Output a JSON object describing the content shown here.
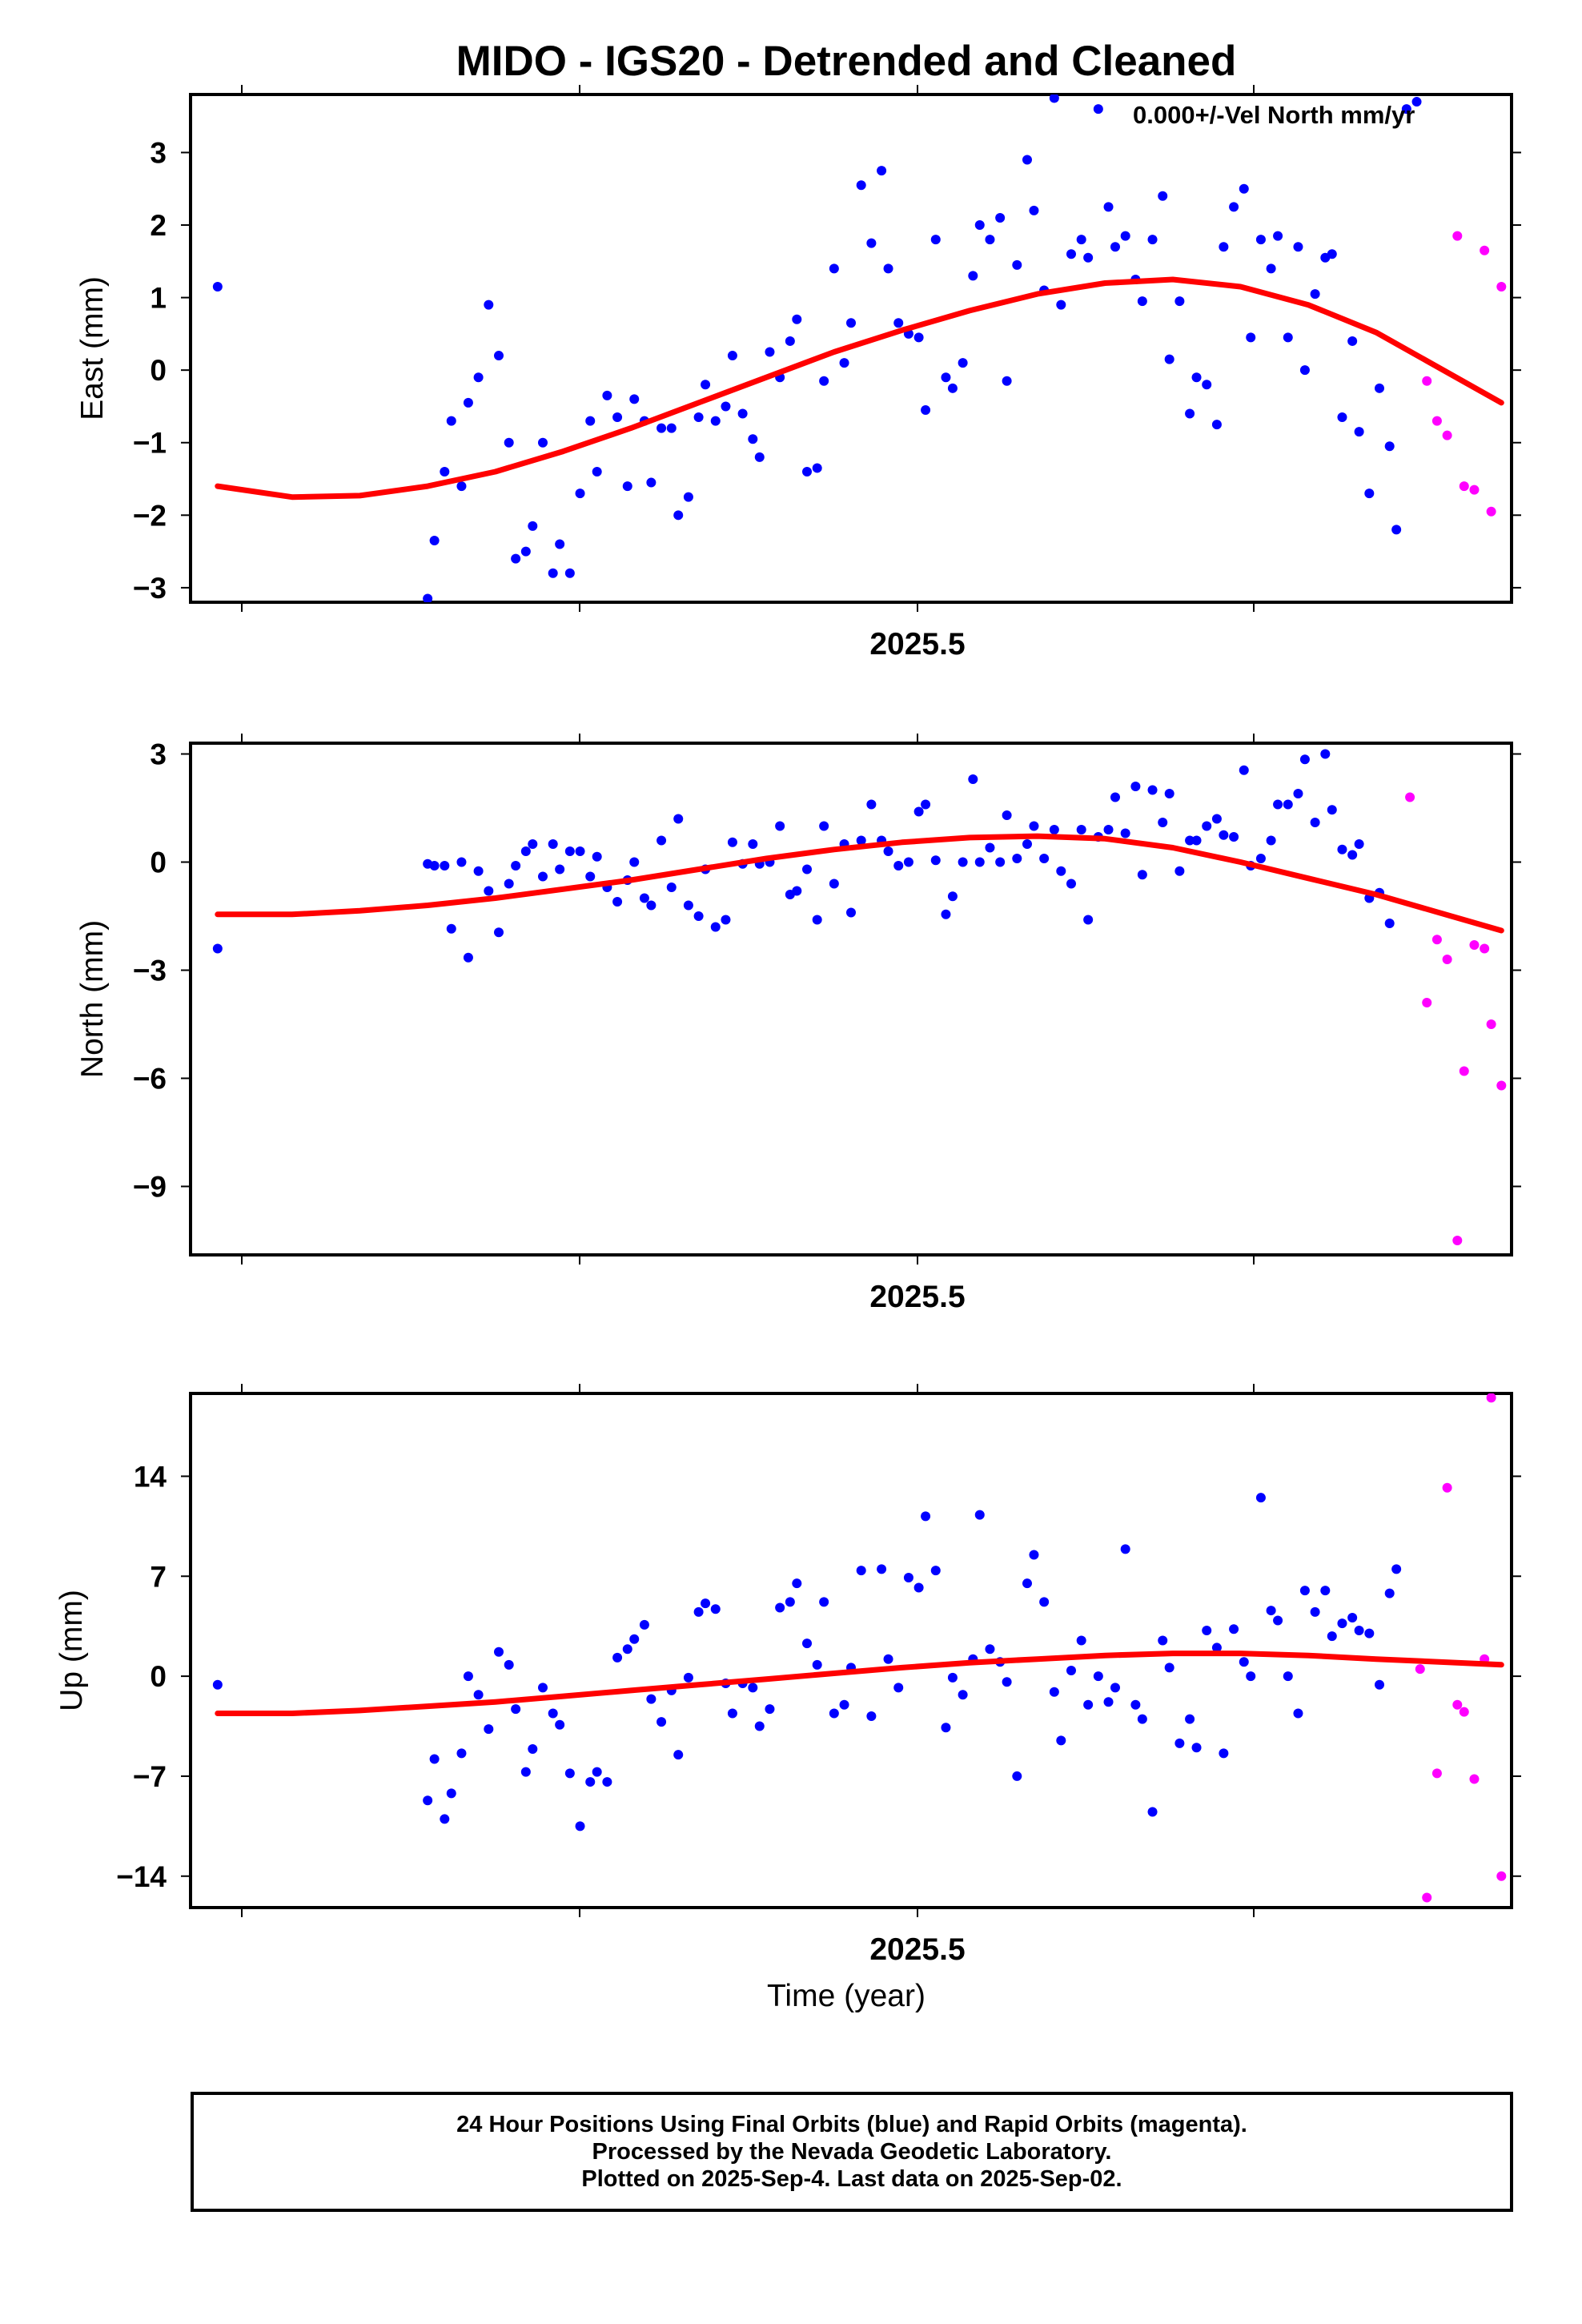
{
  "title": "MIDO - IGS20 - Detrended and Cleaned",
  "colors": {
    "final": "#0000ff",
    "rapid": "#ff00ff",
    "fit": "#ff0000",
    "frame": "#000000"
  },
  "chart_data": [
    {
      "type": "scatter",
      "ylabel": "East (mm)",
      "xtick_label": "2025.5",
      "legend": "0.000+/-Vel North mm/yr",
      "xlim": [
        2025.28,
        2025.67
      ],
      "ylim": [
        -3.2,
        3.8
      ],
      "yticks": [
        -3,
        -2,
        -1,
        0,
        1,
        2,
        3
      ],
      "ytick_labels": [
        "−3",
        "−2",
        "−1",
        "0",
        "1",
        "2",
        "3"
      ],
      "series": [
        {
          "name": "Final Orbits",
          "color": "#0000ff",
          "x": [
            2025.288,
            2025.35,
            2025.352,
            2025.355,
            2025.357,
            2025.36,
            2025.362,
            2025.365,
            2025.368,
            2025.371,
            2025.374,
            2025.376,
            2025.379,
            2025.381,
            2025.384,
            2025.387,
            2025.389,
            2025.392,
            2025.395,
            2025.398,
            2025.4,
            2025.403,
            2025.406,
            2025.409,
            2025.411,
            2025.414,
            2025.416,
            2025.419,
            2025.422,
            2025.424,
            2025.427,
            2025.43,
            2025.432,
            2025.435,
            2025.438,
            2025.44,
            2025.443,
            2025.446,
            2025.448,
            2025.451,
            2025.454,
            2025.457,
            2025.459,
            2025.462,
            2025.465,
            2025.467,
            2025.47,
            2025.473,
            2025.475,
            2025.478,
            2025.481,
            2025.484,
            2025.486,
            2025.489,
            2025.492,
            2025.495,
            2025.497,
            2025.5,
            2025.503,
            2025.505,
            2025.508,
            2025.511,
            2025.513,
            2025.516,
            2025.519,
            2025.521,
            2025.524,
            2025.527,
            2025.529,
            2025.532,
            2025.535,
            2025.537,
            2025.54,
            2025.543,
            2025.545,
            2025.548,
            2025.551,
            2025.553,
            2025.556,
            2025.559,
            2025.561,
            2025.564,
            2025.567,
            2025.569,
            2025.572,
            2025.575,
            2025.577,
            2025.58,
            2025.583,
            2025.585,
            2025.588,
            2025.591,
            2025.593,
            2025.596,
            2025.599,
            2025.601,
            2025.604,
            2025.607,
            2025.609,
            2025.612,
            2025.615,
            2025.617,
            2025.62,
            2025.623,
            2025.625,
            2025.628,
            2025.631,
            2025.634,
            2025.636,
            2025.639,
            2025.642
          ],
          "y": [
            1.15,
            -3.15,
            -2.35,
            -1.4,
            -0.7,
            -1.6,
            -0.45,
            -0.1,
            0.9,
            0.2,
            -1.0,
            -2.6,
            -2.5,
            -2.15,
            -1.0,
            -2.8,
            -2.4,
            -2.8,
            -1.7,
            -0.7,
            -1.4,
            -0.35,
            -0.65,
            -1.6,
            -0.4,
            -0.7,
            -1.55,
            -0.8,
            -0.8,
            -2.0,
            -1.75,
            -0.65,
            -0.2,
            -0.7,
            -0.5,
            0.2,
            -0.6,
            -0.95,
            -1.2,
            0.25,
            -0.1,
            0.4,
            0.7,
            -1.4,
            -1.35,
            -0.15,
            1.4,
            0.1,
            0.65,
            2.55,
            1.75,
            2.75,
            1.4,
            0.65,
            0.5,
            0.45,
            -0.55,
            1.8,
            -0.1,
            -0.25,
            0.1,
            1.3,
            2.0,
            1.8,
            2.1,
            -0.15,
            1.45,
            2.9,
            2.2,
            1.1,
            3.75,
            0.9,
            1.6,
            1.8,
            1.55,
            3.6,
            2.25,
            1.7,
            1.85,
            1.25,
            0.95,
            1.8,
            2.4,
            0.15,
            0.95,
            -0.6,
            -0.1,
            -0.2,
            -0.75,
            1.7,
            2.25,
            2.5,
            0.45,
            1.8,
            1.4,
            1.85,
            0.45,
            1.7,
            0.0,
            1.05,
            1.55,
            1.6,
            -0.65,
            0.4,
            -0.85,
            -1.7,
            -0.25,
            -1.05,
            -2.2,
            3.6,
            3.7
          ]
        },
        {
          "name": "Rapid Orbits",
          "color": "#ff00ff",
          "x": [
            2025.645,
            2025.648,
            2025.651,
            2025.654,
            2025.656,
            2025.659,
            2025.662,
            2025.664,
            2025.667
          ],
          "y": [
            -0.15,
            -0.7,
            -0.9,
            1.85,
            -1.6,
            -1.65,
            1.65,
            -1.95,
            1.15
          ]
        }
      ],
      "fit": {
        "x": [
          2025.288,
          2025.31,
          2025.33,
          2025.35,
          2025.37,
          2025.39,
          2025.41,
          2025.43,
          2025.45,
          2025.47,
          2025.49,
          2025.51,
          2025.53,
          2025.55,
          2025.57,
          2025.59,
          2025.61,
          2025.63,
          2025.667
        ],
        "y": [
          -1.6,
          -1.75,
          -1.73,
          -1.6,
          -1.4,
          -1.12,
          -0.8,
          -0.45,
          -0.1,
          0.25,
          0.55,
          0.82,
          1.05,
          1.2,
          1.25,
          1.15,
          0.9,
          0.52,
          -0.45
        ]
      }
    },
    {
      "type": "scatter",
      "ylabel": "North (mm)",
      "xtick_label": "2025.5",
      "xlim": [
        2025.28,
        2025.67
      ],
      "ylim": [
        -10.9,
        3.3
      ],
      "yticks": [
        -9,
        -6,
        -3,
        0,
        3
      ],
      "ytick_labels": [
        "−9",
        "−6",
        "−3",
        "0",
        "3"
      ],
      "series": [
        {
          "name": "Final Orbits",
          "color": "#0000ff",
          "x": [
            2025.288,
            2025.35,
            2025.352,
            2025.355,
            2025.357,
            2025.36,
            2025.362,
            2025.365,
            2025.368,
            2025.371,
            2025.374,
            2025.376,
            2025.379,
            2025.381,
            2025.384,
            2025.387,
            2025.389,
            2025.392,
            2025.395,
            2025.398,
            2025.4,
            2025.403,
            2025.406,
            2025.409,
            2025.411,
            2025.414,
            2025.416,
            2025.419,
            2025.422,
            2025.424,
            2025.427,
            2025.43,
            2025.432,
            2025.435,
            2025.438,
            2025.44,
            2025.443,
            2025.446,
            2025.448,
            2025.451,
            2025.454,
            2025.457,
            2025.459,
            2025.462,
            2025.465,
            2025.467,
            2025.47,
            2025.473,
            2025.475,
            2025.478,
            2025.481,
            2025.484,
            2025.486,
            2025.489,
            2025.492,
            2025.495,
            2025.497,
            2025.5,
            2025.503,
            2025.505,
            2025.508,
            2025.511,
            2025.513,
            2025.516,
            2025.519,
            2025.521,
            2025.524,
            2025.527,
            2025.529,
            2025.532,
            2025.535,
            2025.537,
            2025.54,
            2025.543,
            2025.545,
            2025.548,
            2025.551,
            2025.553,
            2025.556,
            2025.559,
            2025.561,
            2025.564,
            2025.567,
            2025.569,
            2025.572,
            2025.575,
            2025.577,
            2025.58,
            2025.583,
            2025.585,
            2025.588,
            2025.591,
            2025.593,
            2025.596,
            2025.599,
            2025.601,
            2025.604,
            2025.607,
            2025.609,
            2025.612,
            2025.615,
            2025.617,
            2025.62,
            2025.623,
            2025.625,
            2025.628,
            2025.631,
            2025.634
          ],
          "y": [
            -2.4,
            -0.05,
            -0.1,
            -0.1,
            -1.85,
            0.0,
            -2.65,
            -0.25,
            -0.8,
            -1.95,
            -0.6,
            -0.1,
            0.3,
            0.5,
            -0.4,
            0.5,
            -0.2,
            0.3,
            0.3,
            -0.4,
            0.15,
            -0.7,
            -1.1,
            -0.5,
            0.0,
            -1.0,
            -1.2,
            0.6,
            -0.7,
            1.2,
            -1.2,
            -1.5,
            -0.2,
            -1.8,
            -1.6,
            0.55,
            -0.05,
            0.5,
            -0.05,
            0.0,
            1.0,
            -0.9,
            -0.8,
            -0.2,
            -1.6,
            1.0,
            -0.6,
            0.5,
            -1.4,
            0.6,
            1.6,
            0.6,
            0.3,
            -0.1,
            0.0,
            1.4,
            1.6,
            0.05,
            -1.45,
            -0.95,
            0.0,
            2.3,
            0.0,
            0.4,
            0.0,
            1.3,
            0.1,
            0.5,
            1.0,
            0.1,
            0.9,
            -0.25,
            -0.6,
            0.9,
            -1.6,
            0.7,
            0.9,
            1.8,
            0.8,
            2.1,
            -0.35,
            2.0,
            1.1,
            1.9,
            -0.25,
            0.6,
            0.6,
            1.0,
            1.2,
            0.75,
            0.7,
            2.55,
            -0.1,
            0.1,
            0.6,
            1.6,
            1.6,
            1.9,
            2.85,
            1.1,
            3.0,
            1.45,
            0.35,
            0.2,
            0.5,
            -1.0,
            -0.85,
            -1.7
          ]
        },
        {
          "name": "Rapid Orbits",
          "color": "#ff00ff",
          "x": [
            2025.64,
            2025.645,
            2025.648,
            2025.651,
            2025.654,
            2025.656,
            2025.659,
            2025.662,
            2025.664,
            2025.667
          ],
          "y": [
            1.8,
            -3.9,
            -2.15,
            -2.7,
            -10.5,
            -5.8,
            -2.3,
            -2.4,
            -4.5,
            -6.2
          ]
        }
      ],
      "fit": {
        "x": [
          2025.288,
          2025.31,
          2025.33,
          2025.35,
          2025.37,
          2025.39,
          2025.41,
          2025.43,
          2025.45,
          2025.47,
          2025.49,
          2025.51,
          2025.53,
          2025.55,
          2025.57,
          2025.59,
          2025.61,
          2025.63,
          2025.667
        ],
        "y": [
          -1.45,
          -1.45,
          -1.35,
          -1.2,
          -1.0,
          -0.75,
          -0.5,
          -0.2,
          0.1,
          0.35,
          0.55,
          0.68,
          0.72,
          0.65,
          0.4,
          0.0,
          -0.45,
          -0.9,
          -1.9
        ]
      }
    },
    {
      "type": "scatter",
      "ylabel": "Up (mm)",
      "xtick_label": "2025.5",
      "xlabel": "Time (year)",
      "xlim": [
        2025.28,
        2025.67
      ],
      "ylim": [
        -16.2,
        19.8
      ],
      "yticks": [
        -14,
        -7,
        0,
        7,
        14
      ],
      "ytick_labels": [
        "−14",
        "−7",
        "0",
        "7",
        "14"
      ],
      "series": [
        {
          "name": "Final Orbits",
          "color": "#0000ff",
          "x": [
            2025.288,
            2025.35,
            2025.352,
            2025.355,
            2025.357,
            2025.36,
            2025.362,
            2025.365,
            2025.368,
            2025.371,
            2025.374,
            2025.376,
            2025.379,
            2025.381,
            2025.384,
            2025.387,
            2025.389,
            2025.392,
            2025.395,
            2025.398,
            2025.4,
            2025.403,
            2025.406,
            2025.409,
            2025.411,
            2025.414,
            2025.416,
            2025.419,
            2025.422,
            2025.424,
            2025.427,
            2025.43,
            2025.432,
            2025.435,
            2025.438,
            2025.44,
            2025.443,
            2025.446,
            2025.448,
            2025.451,
            2025.454,
            2025.457,
            2025.459,
            2025.462,
            2025.465,
            2025.467,
            2025.47,
            2025.473,
            2025.475,
            2025.478,
            2025.481,
            2025.484,
            2025.486,
            2025.489,
            2025.492,
            2025.495,
            2025.497,
            2025.5,
            2025.503,
            2025.505,
            2025.508,
            2025.511,
            2025.513,
            2025.516,
            2025.519,
            2025.521,
            2025.524,
            2025.527,
            2025.529,
            2025.532,
            2025.535,
            2025.537,
            2025.54,
            2025.543,
            2025.545,
            2025.548,
            2025.551,
            2025.553,
            2025.556,
            2025.559,
            2025.561,
            2025.564,
            2025.567,
            2025.569,
            2025.572,
            2025.575,
            2025.577,
            2025.58,
            2025.583,
            2025.585,
            2025.588,
            2025.591,
            2025.593,
            2025.596,
            2025.599,
            2025.601,
            2025.604,
            2025.607,
            2025.609,
            2025.612,
            2025.615,
            2025.617,
            2025.62,
            2025.623,
            2025.625,
            2025.628,
            2025.631,
            2025.634,
            2025.636
          ],
          "y": [
            -0.6,
            -8.7,
            -5.8,
            -10.0,
            -8.2,
            -5.4,
            0.0,
            -1.3,
            -3.7,
            1.7,
            0.8,
            -2.3,
            -6.7,
            -5.1,
            -0.8,
            -2.6,
            -3.4,
            -6.8,
            -10.5,
            -7.4,
            -6.7,
            -7.4,
            1.3,
            1.9,
            2.6,
            3.6,
            -1.6,
            -3.2,
            -1.0,
            -5.5,
            -0.1,
            4.5,
            5.1,
            4.7,
            -0.5,
            -2.6,
            -0.5,
            -0.8,
            -3.5,
            -2.3,
            4.8,
            5.2,
            6.5,
            2.3,
            0.8,
            5.2,
            -2.6,
            -2.0,
            0.6,
            7.4,
            -2.8,
            7.5,
            1.2,
            -0.8,
            6.9,
            6.2,
            11.2,
            7.4,
            -3.6,
            -0.1,
            -1.3,
            1.2,
            11.3,
            1.9,
            1.0,
            -0.4,
            -7.0,
            6.5,
            8.5,
            5.2,
            -1.1,
            -4.5,
            0.4,
            2.5,
            -2.0,
            0.0,
            -1.8,
            -0.8,
            8.9,
            -2.0,
            -3.0,
            -9.5,
            2.5,
            0.6,
            -4.7,
            -3.0,
            -5.0,
            3.2,
            2.0,
            -5.4,
            3.3,
            1.0,
            0.0,
            12.5,
            4.6,
            3.9,
            0.0,
            -2.6,
            6.0,
            4.5,
            6.0,
            2.8,
            3.7,
            4.1,
            3.2,
            3.0,
            -0.6,
            5.8,
            7.5
          ]
        },
        {
          "name": "Rapid Orbits",
          "color": "#ff00ff",
          "x": [
            2025.643,
            2025.645,
            2025.648,
            2025.651,
            2025.654,
            2025.656,
            2025.659,
            2025.662,
            2025.664,
            2025.667
          ],
          "y": [
            0.5,
            -15.5,
            -6.8,
            13.2,
            -2.0,
            -2.5,
            -7.2,
            1.2,
            19.5,
            -14.0
          ]
        }
      ],
      "fit": {
        "x": [
          2025.288,
          2025.31,
          2025.33,
          2025.35,
          2025.37,
          2025.39,
          2025.41,
          2025.43,
          2025.45,
          2025.47,
          2025.49,
          2025.51,
          2025.53,
          2025.55,
          2025.57,
          2025.59,
          2025.61,
          2025.63,
          2025.667
        ],
        "y": [
          -2.6,
          -2.6,
          -2.4,
          -2.1,
          -1.8,
          -1.4,
          -1.0,
          -0.6,
          -0.2,
          0.2,
          0.6,
          0.95,
          1.2,
          1.45,
          1.6,
          1.6,
          1.45,
          1.2,
          0.8
        ]
      }
    }
  ],
  "footer": {
    "line1": "24 Hour Positions Using Final Orbits (blue) and Rapid Orbits (magenta).",
    "line2": "Processed by the Nevada Geodetic Laboratory.",
    "line3": "Plotted on 2025-Sep-4. Last data on 2025-Sep-02."
  }
}
